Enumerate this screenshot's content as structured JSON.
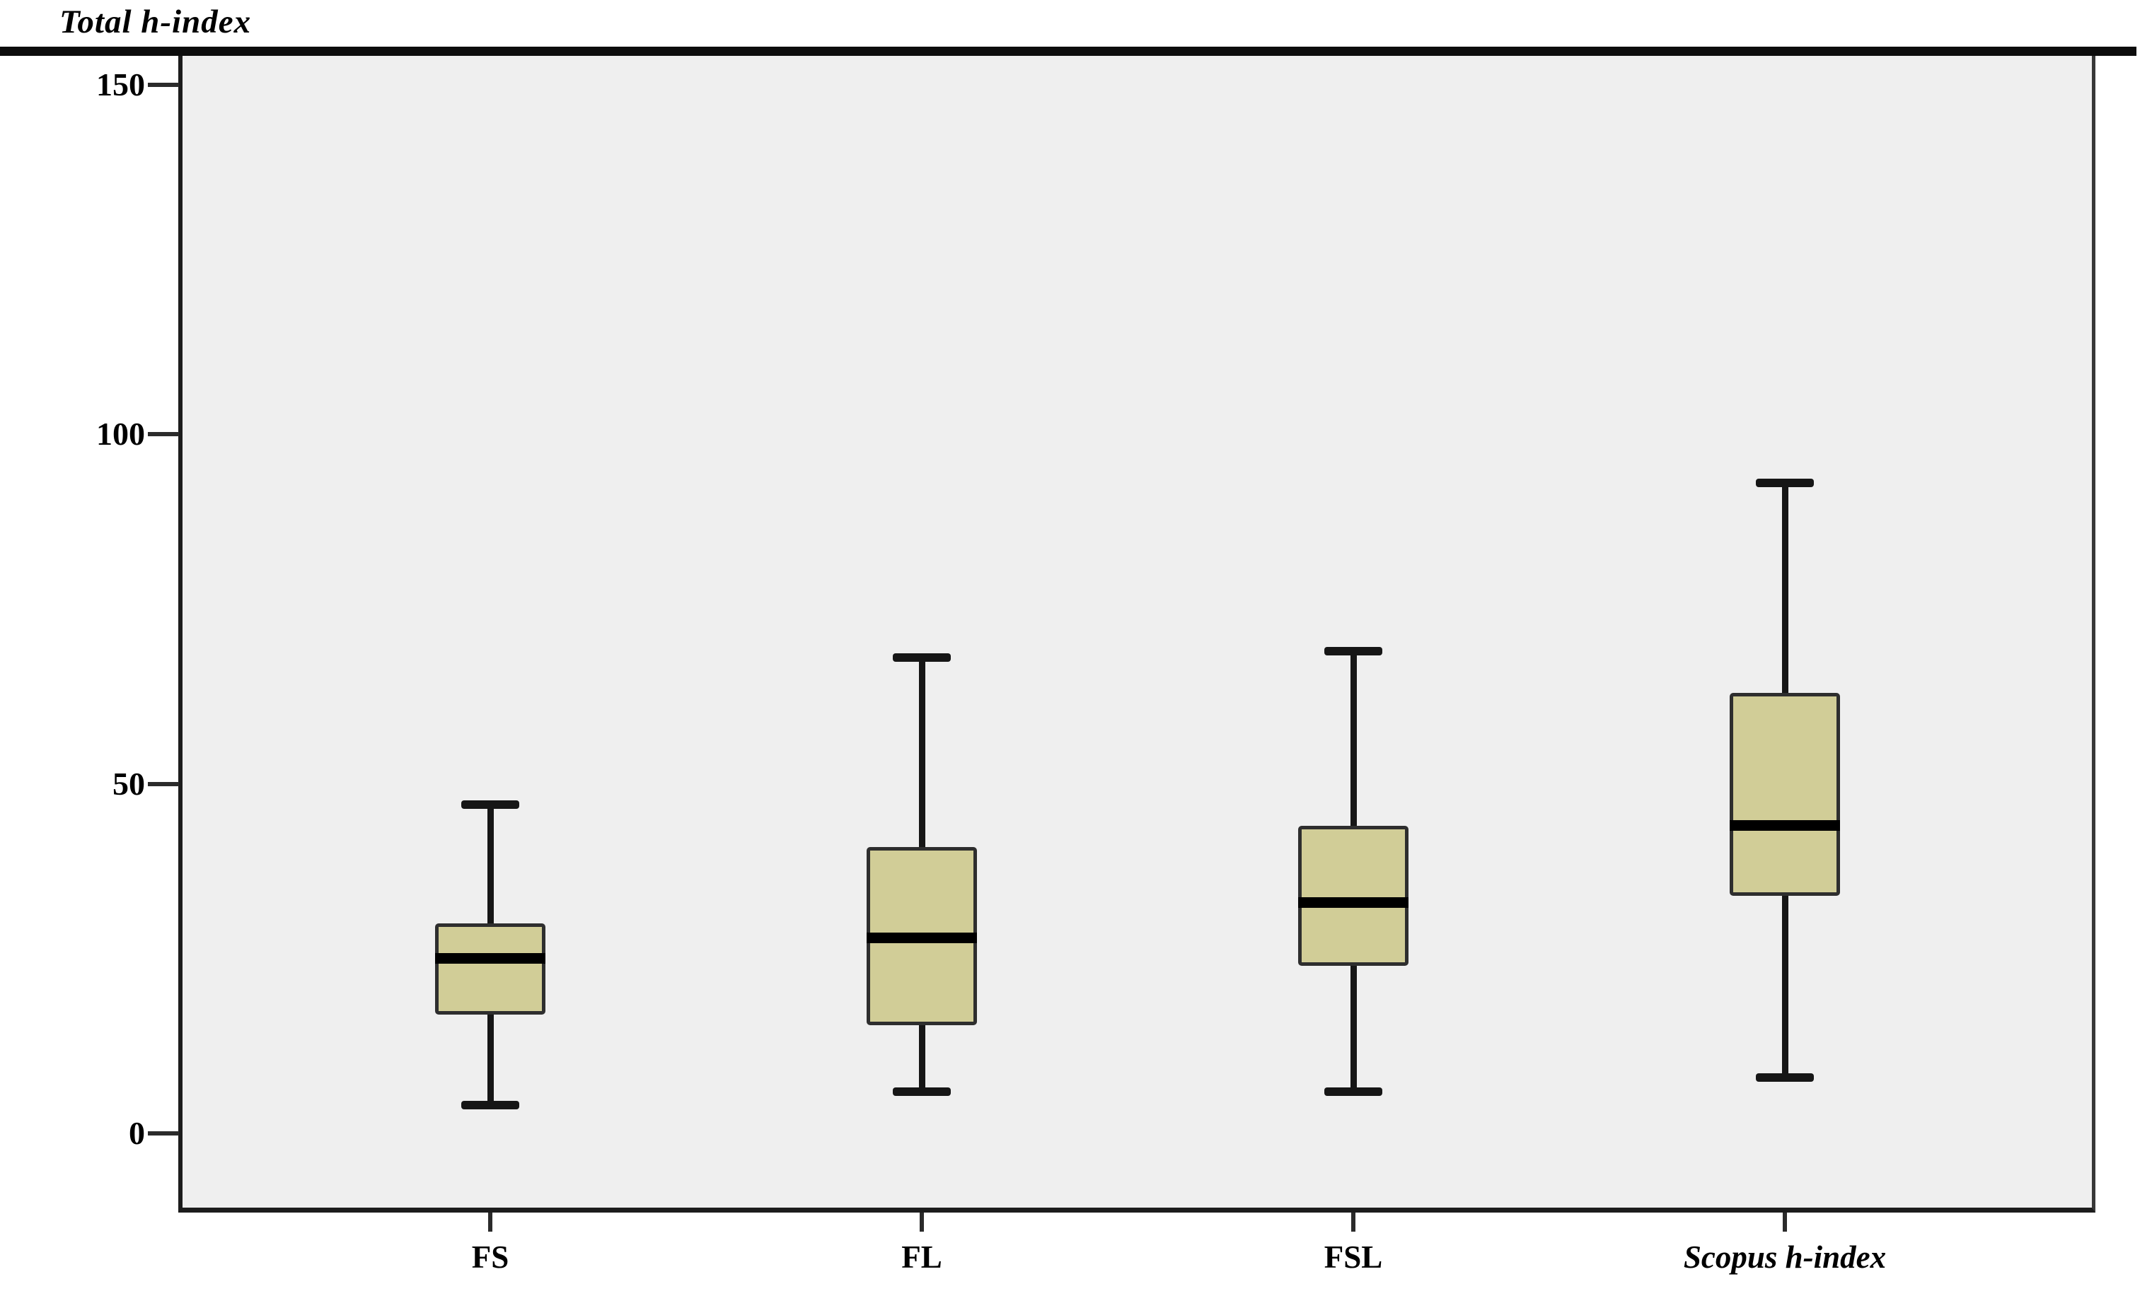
{
  "chart_data": {
    "type": "box",
    "title": "Total h-index",
    "xlabel": "",
    "ylabel": "",
    "categories": [
      "FS",
      "FL",
      "FSL",
      "Scopus h-index"
    ],
    "series": [
      {
        "name": "FS",
        "min": 4,
        "q1": 17,
        "median": 25,
        "q3": 30,
        "max": 47,
        "label_italic": false
      },
      {
        "name": "FL",
        "min": 6,
        "q1": 15.5,
        "median": 28,
        "q3": 41,
        "max": 68,
        "label_italic": false
      },
      {
        "name": "FSL",
        "min": 6,
        "q1": 24,
        "median": 33,
        "q3": 44,
        "max": 69,
        "label_italic": false
      },
      {
        "name": "Scopus h-index",
        "min": 8,
        "q1": 34,
        "median": 44,
        "q3": 63,
        "max": 93,
        "label_italic": true
      }
    ],
    "yticks": [
      0,
      50,
      100,
      150
    ],
    "ylim": [
      0,
      150
    ],
    "grid": false,
    "legend": "none",
    "colors": {
      "box_fill": "#d1cd97",
      "box_border": "#2e2e2e",
      "median": "#000000",
      "whisker": "#161616",
      "plot_background": "#efefef",
      "axis": "#1c1c1c"
    }
  }
}
